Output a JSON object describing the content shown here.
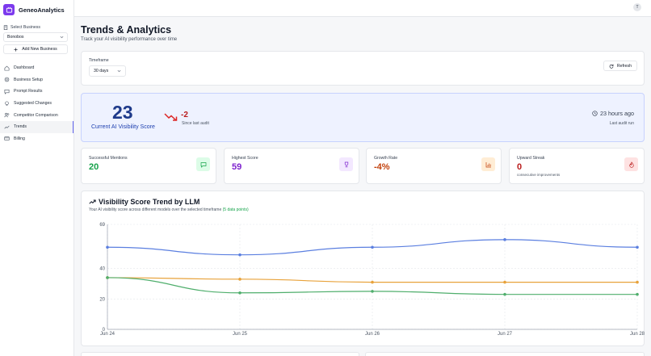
{
  "app": {
    "name": "GeneoAnalytics"
  },
  "sidebar": {
    "select_business_label": "Select Business",
    "selected_business": "Bonobos",
    "add_business_label": "Add New Business",
    "items": [
      {
        "label": "Dashboard",
        "icon": "home-icon"
      },
      {
        "label": "Business Setup",
        "icon": "gear-icon"
      },
      {
        "label": "Prompt Results",
        "icon": "message-icon"
      },
      {
        "label": "Suggested Changes",
        "icon": "lightbulb-icon"
      },
      {
        "label": "Competitor Comparison",
        "icon": "users-icon"
      },
      {
        "label": "Trends",
        "icon": "trend-icon",
        "active": true
      },
      {
        "label": "Billing",
        "icon": "card-icon"
      }
    ]
  },
  "topbar": {
    "avatar_initial": "T"
  },
  "header": {
    "title": "Trends & Analytics",
    "subtitle": "Track your AI visibility performance over time"
  },
  "filters": {
    "timeframe_label": "Timeframe",
    "timeframe_value": "30 days",
    "refresh_label": "Refresh"
  },
  "score": {
    "value": "23",
    "label": "Current AI Visibility Score",
    "delta": "-2",
    "delta_label": "Since last audit",
    "last_audit_time": "23 hours ago",
    "last_audit_label": "Last audit run"
  },
  "stats": [
    {
      "label": "Successful Mentions",
      "value": "20",
      "sub": "",
      "color": "#16a34a",
      "icon": "message-icon",
      "icon_bg": "#dcfce7"
    },
    {
      "label": "Highest Score",
      "value": "59",
      "sub": "",
      "color": "#7e22ce",
      "icon": "trophy-icon",
      "icon_bg": "#f3e8ff"
    },
    {
      "label": "Growth Rate",
      "value": "-4%",
      "sub": "",
      "color": "#c2410c",
      "icon": "bar-chart-icon",
      "icon_bg": "#ffedd5"
    },
    {
      "label": "Upward Streak",
      "value": "0",
      "sub": "consecutive improvements",
      "color": "#b91c1c",
      "icon": "flame-icon",
      "icon_bg": "#fee2e2"
    }
  ],
  "chart": {
    "title": "Visibility Score Trend by LLM",
    "subtitle": "Your AI visibility score across different models over the selected timeframe",
    "points_note": "(5 data points)"
  },
  "chart_data": {
    "type": "line",
    "x": [
      "Jun 24",
      "Jun 25",
      "Jun 26",
      "Jun 27",
      "Jun 28"
    ],
    "yticks": [
      0,
      20,
      40,
      69
    ],
    "ylim": [
      0,
      69
    ],
    "grid": true,
    "series": [
      {
        "color": "#5b7fe0",
        "values": [
          54,
          49,
          54,
          59,
          54
        ]
      },
      {
        "color": "#e8a23a",
        "values": [
          34,
          33,
          31,
          31,
          31
        ]
      },
      {
        "color": "#4fae6c",
        "values": [
          34,
          24,
          25,
          23,
          23
        ]
      }
    ]
  }
}
